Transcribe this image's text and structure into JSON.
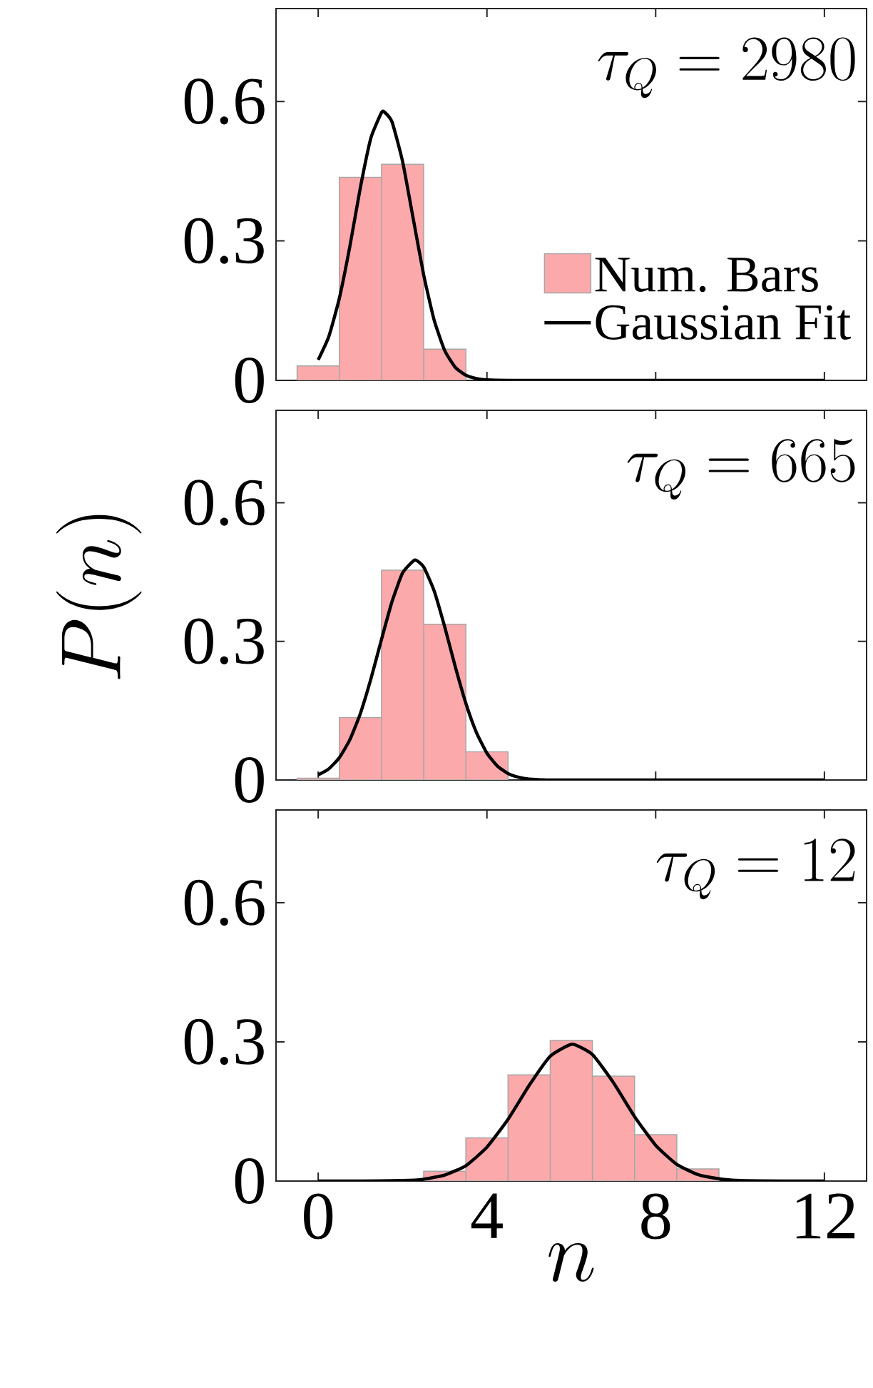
{
  "chart_data": [
    {
      "type": "histogram",
      "annotations": [
        "\\tau_Q = 2980"
      ],
      "bins": [
        -0.5,
        0.5,
        1.5,
        2.5,
        3.5
      ],
      "xlim": [
        -1,
        13
      ],
      "xticks": [
        0,
        4,
        8,
        12
      ],
      "ylim": [
        0,
        0.8
      ],
      "yticks": [
        0,
        0.3,
        0.6
      ],
      "tick_labels": "y",
      "legend": "bottom right",
      "series": [
        {
          "name": "Num. Bars",
          "color": "#fca9ab",
          "values": [
            0.031,
            0.437,
            0.465,
            0.067
          ]
        },
        {
          "name": "Gaussian Fit",
          "type": "line",
          "color": "#000000",
          "x": [
            0,
            0.25,
            0.5,
            0.75,
            1,
            1.25,
            1.5,
            1.56,
            1.75,
            2,
            2.25,
            2.5,
            2.75,
            3,
            3.25,
            3.5,
            3.75,
            4,
            4.5,
            6,
            8,
            10,
            12
          ],
          "values": [
            0.044,
            0.094,
            0.176,
            0.288,
            0.415,
            0.522,
            0.576,
            0.578,
            0.556,
            0.471,
            0.349,
            0.227,
            0.129,
            0.064,
            0.028,
            0.011,
            0.004,
            0.001,
            0,
            0,
            0,
            0,
            0
          ]
        }
      ]
    },
    {
      "type": "histogram",
      "annotations": [
        "\\tau_Q = 665"
      ],
      "ylabel": "P(n)",
      "bins": [
        -0.5,
        0.5,
        1.5,
        2.5,
        3.5,
        4.5
      ],
      "xlim": [
        -1,
        13
      ],
      "xticks": [
        0,
        4,
        8,
        12
      ],
      "ylim": [
        0,
        0.8
      ],
      "yticks": [
        0,
        0.3,
        0.6
      ],
      "tick_labels": "y",
      "series": [
        {
          "color": "#fca9ab",
          "values": [
            0.004,
            0.135,
            0.454,
            0.337,
            0.061
          ]
        },
        {
          "type": "line",
          "color": "#000000",
          "x": [
            0,
            0.25,
            0.5,
            0.75,
            1,
            1.25,
            1.5,
            1.75,
            2,
            2.29,
            2.5,
            2.75,
            3,
            3.25,
            3.5,
            3.75,
            4,
            4.25,
            4.5,
            4.75,
            5,
            5.5,
            6,
            8,
            10,
            12
          ],
          "values": [
            0.011,
            0.024,
            0.048,
            0.087,
            0.144,
            0.219,
            0.304,
            0.386,
            0.448,
            0.476,
            0.461,
            0.409,
            0.331,
            0.245,
            0.166,
            0.103,
            0.058,
            0.03,
            0.014,
            0.006,
            0.002,
            0,
            0,
            0,
            0,
            0
          ]
        }
      ]
    },
    {
      "type": "histogram",
      "annotations": [
        "\\tau_Q = 12"
      ],
      "xlabel": "n",
      "bins": [
        2.5,
        3.5,
        4.5,
        5.5,
        6.5,
        7.5,
        8.5,
        9.5
      ],
      "xlim": [
        -1,
        13
      ],
      "xticks": [
        0,
        4,
        8,
        12
      ],
      "ylim": [
        0,
        0.8
      ],
      "yticks": [
        0,
        0.3,
        0.6
      ],
      "series": [
        {
          "color": "#fca9ab",
          "values": [
            0.021,
            0.093,
            0.229,
            0.303,
            0.226,
            0.1,
            0.026
          ]
        },
        {
          "type": "line",
          "color": "#000000",
          "x": [
            0,
            1,
            2,
            2.5,
            3,
            3.5,
            4,
            4.5,
            5,
            5.5,
            6.02,
            6.5,
            7,
            7.5,
            8,
            8.5,
            9,
            9.5,
            10,
            11,
            12
          ],
          "values": [
            0,
            0,
            0.001,
            0.004,
            0.013,
            0.033,
            0.073,
            0.133,
            0.206,
            0.269,
            0.295,
            0.273,
            0.212,
            0.139,
            0.077,
            0.036,
            0.014,
            0.005,
            0.001,
            0,
            0
          ]
        }
      ]
    }
  ]
}
